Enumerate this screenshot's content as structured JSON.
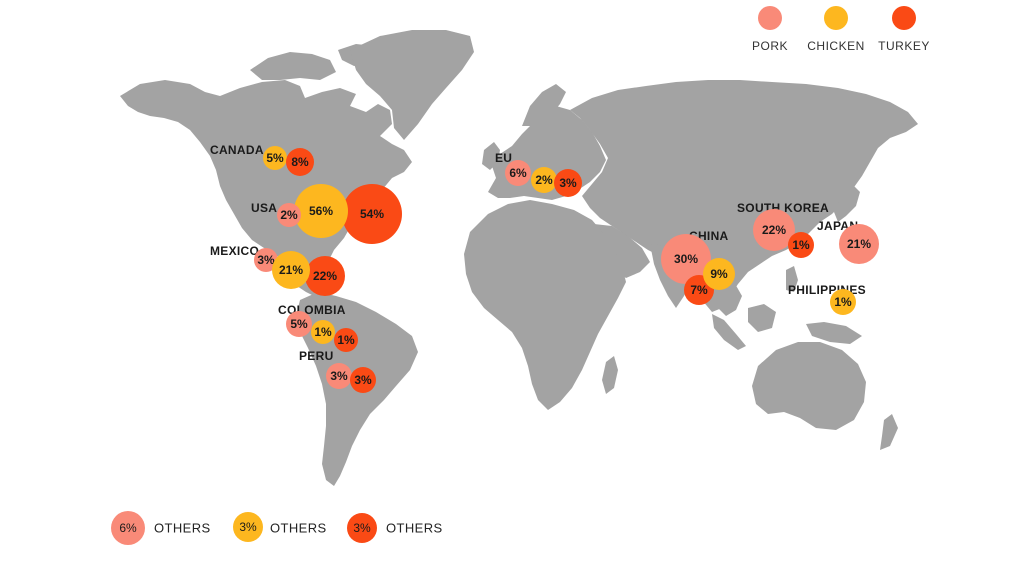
{
  "colors": {
    "pork": "#f98a78",
    "chicken": "#fdb71f",
    "turkey": "#fa4a15",
    "land": "#a3a3a3"
  },
  "legend": [
    {
      "key": "pork",
      "label": "PORK"
    },
    {
      "key": "chicken",
      "label": "CHICKEN"
    },
    {
      "key": "turkey",
      "label": "TURKEY"
    }
  ],
  "regions": [
    {
      "name": "CANADA",
      "values": [
        {
          "meat": "chicken",
          "value": "5%"
        },
        {
          "meat": "turkey",
          "value": "8%"
        }
      ]
    },
    {
      "name": "USA",
      "values": [
        {
          "meat": "pork",
          "value": "2%"
        },
        {
          "meat": "chicken",
          "value": "56%"
        },
        {
          "meat": "turkey",
          "value": "54%"
        }
      ]
    },
    {
      "name": "MEXICO",
      "values": [
        {
          "meat": "pork",
          "value": "3%"
        },
        {
          "meat": "chicken",
          "value": "21%"
        },
        {
          "meat": "turkey",
          "value": "22%"
        }
      ]
    },
    {
      "name": "COLOMBIA",
      "values": [
        {
          "meat": "pork",
          "value": "5%"
        },
        {
          "meat": "chicken",
          "value": "1%"
        },
        {
          "meat": "turkey",
          "value": "1%"
        }
      ]
    },
    {
      "name": "PERU",
      "values": [
        {
          "meat": "pork",
          "value": "3%"
        },
        {
          "meat": "turkey",
          "value": "3%"
        }
      ]
    },
    {
      "name": "EU",
      "values": [
        {
          "meat": "pork",
          "value": "6%"
        },
        {
          "meat": "chicken",
          "value": "2%"
        },
        {
          "meat": "turkey",
          "value": "3%"
        }
      ]
    },
    {
      "name": "CHINA",
      "values": [
        {
          "meat": "pork",
          "value": "30%"
        },
        {
          "meat": "chicken",
          "value": "9%"
        },
        {
          "meat": "turkey",
          "value": "7%"
        }
      ]
    },
    {
      "name": "SOUTH KOREA",
      "values": [
        {
          "meat": "pork",
          "value": "22%"
        },
        {
          "meat": "turkey",
          "value": "1%"
        }
      ]
    },
    {
      "name": "JAPAN",
      "values": [
        {
          "meat": "pork",
          "value": "21%"
        }
      ]
    },
    {
      "name": "PHILIPPINES",
      "values": [
        {
          "meat": "chicken",
          "value": "1%"
        }
      ]
    }
  ],
  "others": [
    {
      "meat": "pork",
      "value": "6%",
      "label": "OTHERS"
    },
    {
      "meat": "chicken",
      "value": "3%",
      "label": "OTHERS"
    },
    {
      "meat": "turkey",
      "value": "3%",
      "label": "OTHERS"
    }
  ]
}
